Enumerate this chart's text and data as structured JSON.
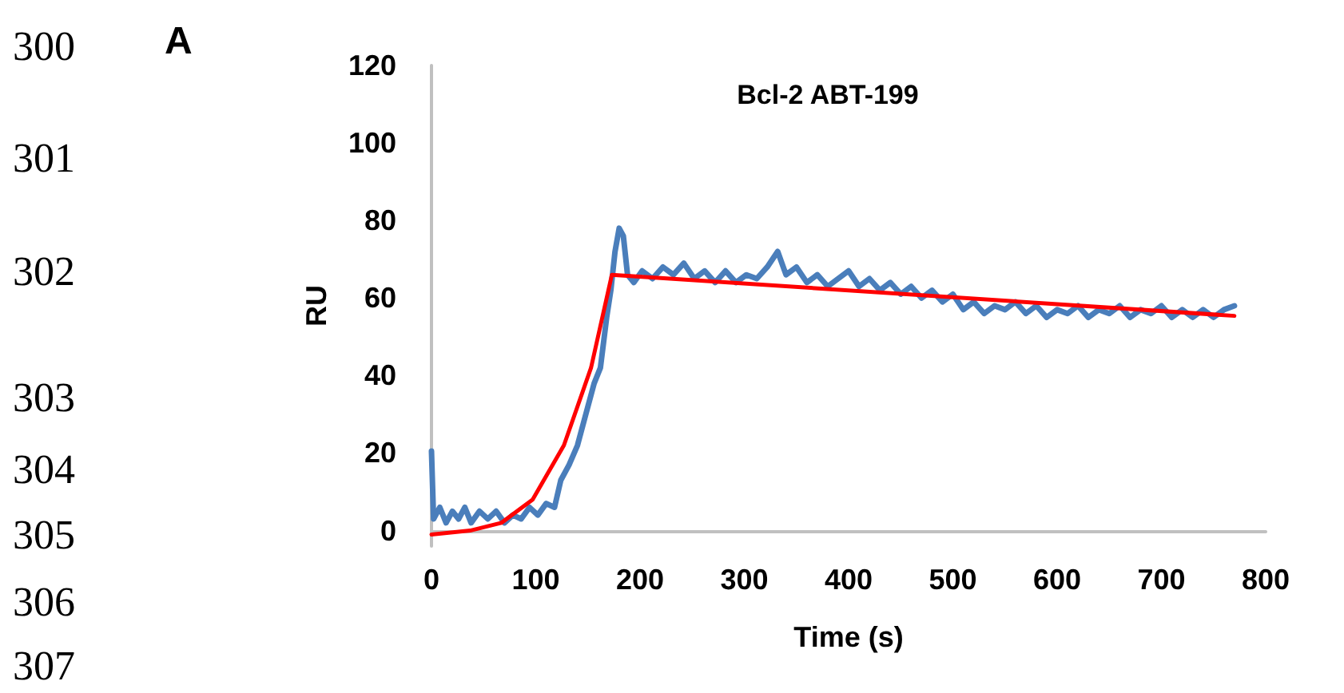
{
  "chart_data": {
    "type": "line",
    "title": "Bcl-2 ABT-199",
    "xlabel": "Time (s)",
    "ylabel": "RU",
    "annotations": [
      "A",
      "300",
      "301",
      "302",
      "303",
      "304",
      "305",
      "306",
      "307"
    ],
    "xlim": [
      0,
      800
    ],
    "xticks": [
      0,
      100,
      200,
      300,
      400,
      500,
      600,
      700,
      800
    ],
    "ylim": [
      -4,
      120
    ],
    "yticks": [
      0,
      20,
      40,
      60,
      80,
      100,
      120
    ],
    "grid": false,
    "marker": "none",
    "line_style": "solid",
    "series": [
      {
        "color": "#4a7ebb",
        "x": [
          0,
          2,
          8,
          14,
          20,
          26,
          32,
          38,
          46,
          54,
          62,
          70,
          78,
          86,
          94,
          102,
          110,
          118,
          124,
          132,
          140,
          148,
          156,
          162,
          168,
          172,
          176,
          180,
          184,
          188,
          194,
          202,
          212,
          222,
          232,
          242,
          252,
          262,
          272,
          282,
          292,
          302,
          312,
          322,
          332,
          340,
          350,
          360,
          370,
          380,
          390,
          400,
          410,
          420,
          430,
          440,
          450,
          460,
          470,
          480,
          490,
          500,
          510,
          520,
          530,
          540,
          550,
          560,
          570,
          580,
          590,
          600,
          610,
          620,
          630,
          640,
          650,
          660,
          670,
          680,
          690,
          700,
          710,
          720,
          730,
          740,
          750,
          760,
          770
        ],
        "values": [
          20.5,
          3,
          6,
          2,
          5,
          3,
          6,
          2,
          5,
          3,
          5,
          2,
          4,
          3,
          6,
          4,
          7,
          6,
          13,
          17,
          22,
          30,
          38,
          42,
          55,
          62,
          72,
          78,
          76,
          66,
          64,
          67,
          65,
          68,
          66,
          69,
          65,
          67,
          64,
          67,
          64,
          66,
          65,
          68,
          72,
          66,
          68,
          64,
          66,
          63,
          65,
          67,
          63,
          65,
          62,
          64,
          61,
          63,
          60,
          62,
          59,
          61,
          57,
          59,
          56,
          58,
          57,
          59,
          56,
          58,
          55,
          57,
          56,
          58,
          55,
          57,
          56,
          58,
          55,
          57,
          56,
          58,
          55,
          57,
          55,
          57,
          55,
          57,
          58
        ]
      },
      {
        "color": "#ff0000",
        "x": [
          0,
          37,
          67,
          97,
          127,
          153,
          173,
          770
        ],
        "values": [
          -1,
          0,
          2,
          8,
          22,
          42,
          66,
          55.4
        ]
      }
    ]
  }
}
